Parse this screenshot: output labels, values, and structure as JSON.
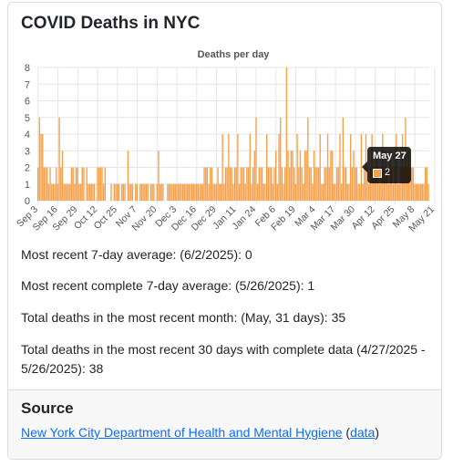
{
  "card": {
    "title": "COVID Deaths in NYC"
  },
  "stats": {
    "recent_avg": "Most recent 7-day average: (6/2/2025): 0",
    "complete_avg": "Most recent complete 7-day average: (5/26/2025): 1",
    "month_total": "Total deaths in the most recent month: (May, 31 days): 35",
    "thirty_day": "Total deaths in the most recent 30 days with complete data (4/27/2025 - 5/26/2025): 38"
  },
  "source": {
    "title": "Source",
    "link_text": "New York City Department of Health and Mental Hygiene",
    "paren_open": "(",
    "data_link": "data",
    "paren_close": ")"
  },
  "tooltip": {
    "title": "May 27",
    "value": "2"
  },
  "colors": {
    "bar": "#f7a04a",
    "bar_edge": "#ef8b2c",
    "grid": "#e6e6e6"
  },
  "chart_data": {
    "type": "bar",
    "title": "Deaths per day",
    "xlabel": "",
    "ylabel": "",
    "ylim": [
      0,
      8
    ],
    "yticks": [
      0,
      1,
      2,
      3,
      4,
      5,
      6,
      7,
      8
    ],
    "start_date": "Sep 3",
    "tick_labels": [
      "Sep 3",
      "Sep 16",
      "Sep 29",
      "Oct 12",
      "Oct 25",
      "Nov 7",
      "Nov 20",
      "Dec 3",
      "Dec 16",
      "Dec 29",
      "Jan 11",
      "Jan 24",
      "Feb 6",
      "Feb 19",
      "Mar 4",
      "Mar 17",
      "Mar 30",
      "Apr 12",
      "Apr 25",
      "May 8",
      "May 21"
    ],
    "series": [
      {
        "values": [
          2,
          5,
          4,
          4,
          2,
          2,
          2,
          1,
          2,
          1,
          1,
          1,
          2,
          1,
          5,
          2,
          3,
          1,
          1,
          1,
          1,
          1,
          2,
          2,
          1,
          2,
          2,
          1,
          1,
          2,
          2,
          0,
          2,
          1,
          1,
          1,
          1,
          1,
          0,
          2,
          2,
          2,
          2,
          1,
          2,
          0,
          0,
          0,
          1,
          0,
          1,
          1,
          1,
          1,
          0,
          1,
          1,
          1,
          0,
          3,
          1,
          1,
          1,
          0,
          1,
          1,
          0,
          1,
          1,
          1,
          1,
          1,
          1,
          0,
          1,
          1,
          1,
          0,
          1,
          3,
          1,
          1,
          1,
          0,
          0,
          1,
          1,
          1,
          1,
          1,
          1,
          1,
          1,
          1,
          1,
          1,
          1,
          1,
          1,
          1,
          1,
          1,
          1,
          1,
          1,
          1,
          1,
          1,
          1,
          2,
          2,
          2,
          1,
          2,
          2,
          1,
          1,
          1,
          2,
          1,
          1,
          4,
          1,
          2,
          2,
          4,
          2,
          2,
          1,
          2,
          2,
          4,
          1,
          2,
          2,
          2,
          1,
          2,
          2,
          4,
          1,
          2,
          3,
          5,
          1,
          2,
          2,
          2,
          1,
          1,
          4,
          2,
          2,
          2,
          1,
          2,
          3,
          1,
          4,
          5,
          2,
          1,
          2,
          8,
          3,
          2,
          3,
          3,
          2,
          1,
          4,
          2,
          3,
          2,
          1,
          3,
          3,
          5,
          2,
          2,
          1,
          3,
          2,
          2,
          2,
          4,
          1,
          1,
          2,
          2,
          4,
          2,
          3,
          3,
          1,
          1,
          2,
          2,
          4,
          1,
          5,
          2,
          2,
          1,
          1,
          4,
          2,
          3,
          2,
          2,
          1,
          1,
          4,
          1,
          2,
          4,
          2,
          1,
          2,
          4,
          2,
          2,
          3,
          2,
          1,
          2,
          4,
          2,
          3,
          2,
          1,
          3,
          2,
          1,
          2,
          4,
          1,
          1,
          2,
          4,
          2,
          5,
          2,
          3,
          2,
          2,
          2,
          1,
          1,
          1,
          1,
          1,
          1,
          1,
          2,
          2,
          1
        ]
      }
    ]
  }
}
